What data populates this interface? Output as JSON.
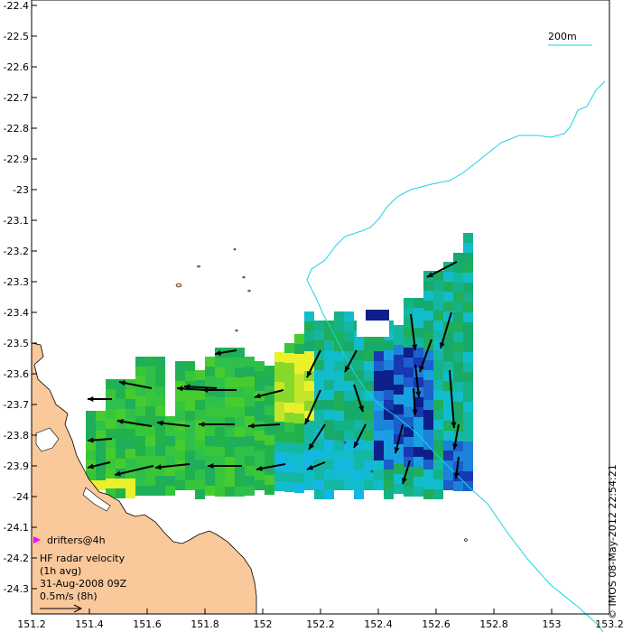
{
  "map": {
    "title": "",
    "lon_ticks": [
      "151.2",
      "151.4",
      "151.6",
      "151.8",
      "152",
      "152.2",
      "152.4",
      "152.6",
      "152.8",
      "153",
      "153.2"
    ],
    "lat_ticks": [
      "-22.4",
      "-22.5",
      "-22.6",
      "-22.7",
      "-22.8",
      "-22.9",
      "-23",
      "-23.1",
      "-23.2",
      "-23.3",
      "-23.4",
      "-23.5",
      "-23.6",
      "-23.7",
      "-23.8",
      "-23.9",
      "-24",
      "-24.1",
      "-24.2",
      "-24.3"
    ],
    "lon_range": [
      151.2,
      153.2
    ],
    "lat_range": [
      -24.4,
      -22.4
    ],
    "colors": {
      "land": "#f9c89b",
      "isobath": "#19d3e6",
      "arrow": "#000000",
      "drifter_marker": "#ff00ff"
    },
    "isobath_label": "200m",
    "legend": {
      "drifters": "drifters@4h",
      "line1": "HF radar velocity",
      "line2": "(1h avg)",
      "line3": "31-Aug-2008 09Z",
      "line4": "0.5m/s (8h)"
    },
    "credit": "© IMOS 08-May-2012 22:54:21"
  }
}
